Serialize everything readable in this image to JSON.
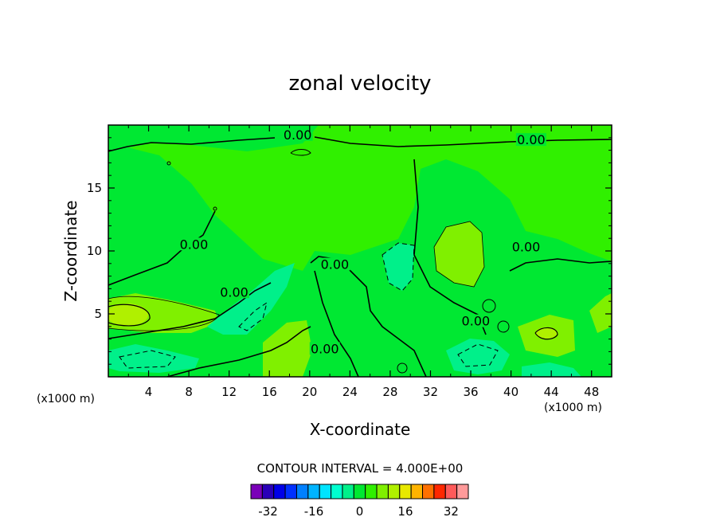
{
  "chart_data": {
    "type": "contour",
    "title": "zonal velocity",
    "xlabel": "X-coordinate",
    "ylabel": "Z-coordinate",
    "x_unit_label": "(x1000 m)",
    "x_unit_label_right": "(x1000 m)",
    "xlim": [
      0,
      50
    ],
    "ylim": [
      0,
      20
    ],
    "x_ticks": [
      "4",
      "8",
      "12",
      "16",
      "20",
      "24",
      "28",
      "32",
      "36",
      "40",
      "44",
      "48"
    ],
    "y_ticks": [
      "5",
      "10",
      "15"
    ],
    "contour_labels": [
      {
        "text": "0.00",
        "x": 18.8,
        "y": 19.0
      },
      {
        "text": "0.00",
        "x": 42.0,
        "y": 18.6
      },
      {
        "text": "0.00",
        "x": 8.5,
        "y": 10.3
      },
      {
        "text": "0.00",
        "x": 22.5,
        "y": 8.7
      },
      {
        "text": "0.00",
        "x": 12.5,
        "y": 6.5
      },
      {
        "text": "0.00",
        "x": 41.5,
        "y": 10.1
      },
      {
        "text": "0.00",
        "x": 21.5,
        "y": 2.0
      },
      {
        "text": "0.00",
        "x": 36.5,
        "y": 4.2
      }
    ],
    "contour_interval_text": "CONTOUR INTERVAL = 4.000E+00",
    "colorbar": {
      "levels": [
        -36,
        -32,
        -28,
        -24,
        -20,
        -16,
        -12,
        -8,
        -4,
        0,
        4,
        8,
        12,
        16,
        20,
        24,
        28,
        32,
        36
      ],
      "tick_labels": [
        "-32",
        "-16",
        "0",
        "16",
        "32"
      ],
      "tick_values": [
        -32,
        -16,
        0,
        16,
        32
      ],
      "colors": [
        "#7a00b8",
        "#2a00b8",
        "#0000e8",
        "#0030ff",
        "#0080ff",
        "#00b4ff",
        "#00e4ff",
        "#00ffd0",
        "#00f08a",
        "#00e832",
        "#30f000",
        "#80f000",
        "#b0f000",
        "#e8e800",
        "#ffb400",
        "#ff7000",
        "#ff2800",
        "#ff5a5a",
        "#ff9a9a"
      ]
    }
  }
}
